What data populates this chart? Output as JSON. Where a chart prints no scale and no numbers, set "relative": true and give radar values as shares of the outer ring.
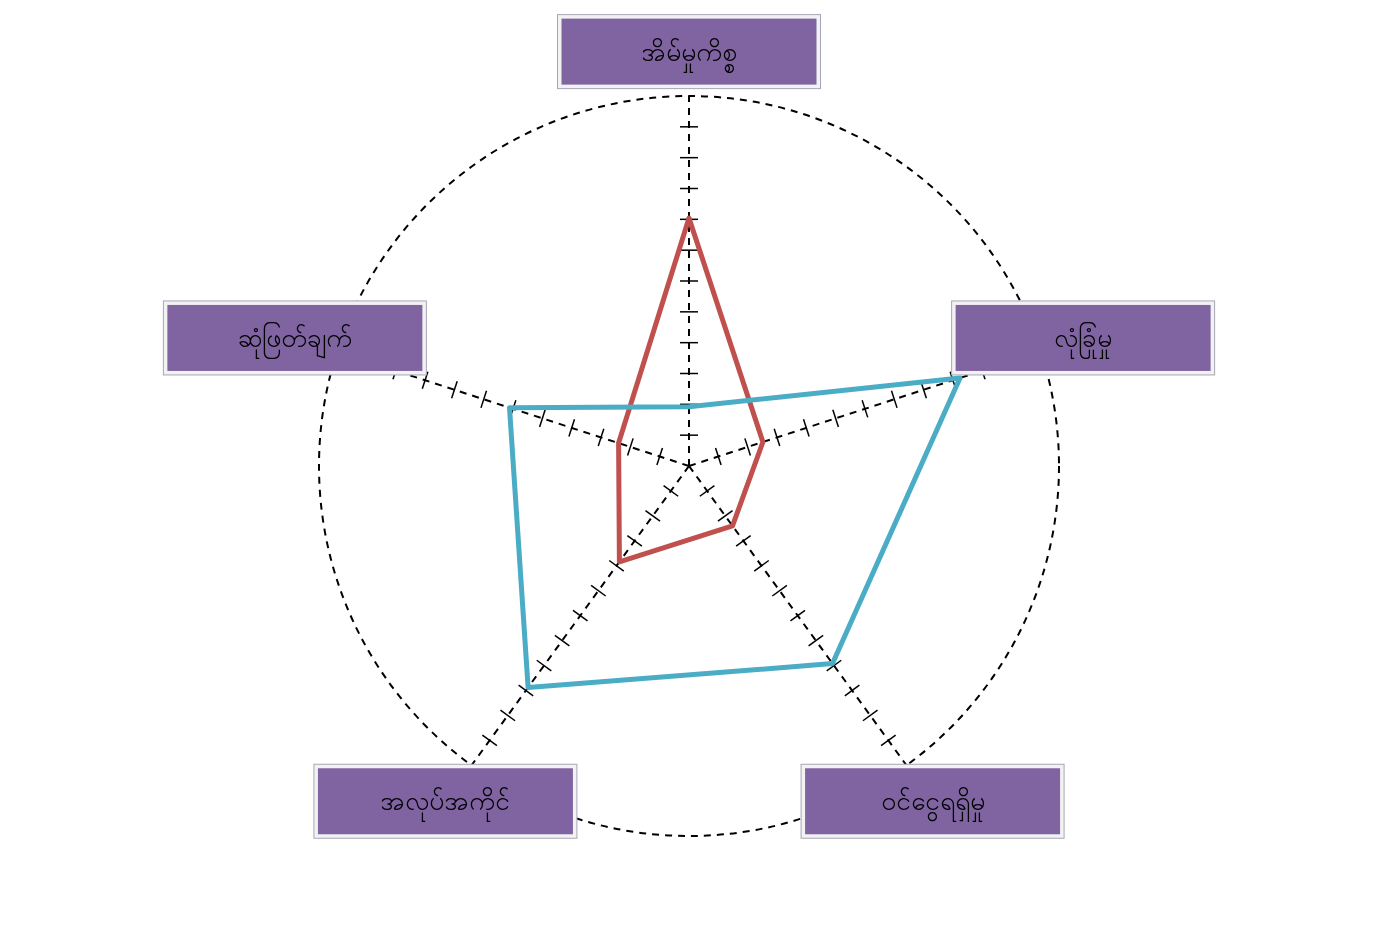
{
  "chart_data": {
    "type": "radar",
    "relative": true,
    "grid": true,
    "categories": [
      "အိမ်မှုကိစ္စ",
      "လုံခြုံမှု",
      "ဝင်ငွေရရှိမှု",
      "အလုပ်အကိုင်",
      "ဆုံဖြတ်ချက်"
    ],
    "series": [
      {
        "color": "#c0504d",
        "values": [
          0.67,
          0.21,
          0.2,
          0.32,
          0.2
        ]
      },
      {
        "color": "#4bacc6",
        "values": [
          0.16,
          0.77,
          0.66,
          0.74,
          0.51
        ]
      }
    ]
  }
}
